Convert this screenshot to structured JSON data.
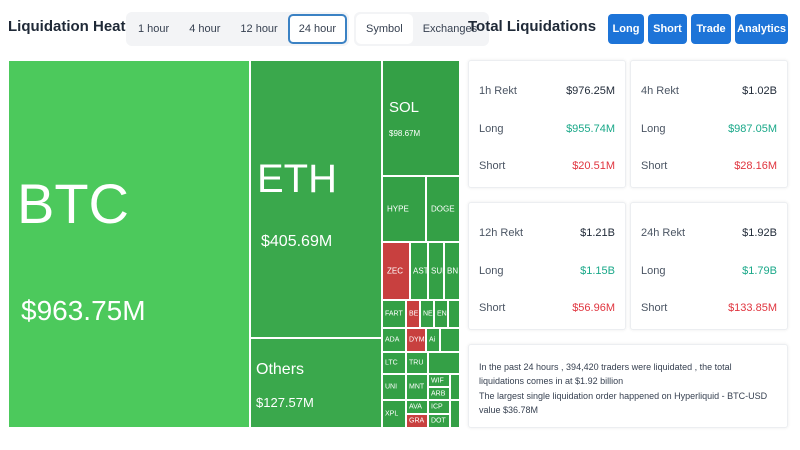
{
  "header": {
    "heatmap_title": "Liquidation Heatmap",
    "time_tabs": [
      "1 hour",
      "4 hour",
      "12 hour",
      "24 hour"
    ],
    "active_time_tab": "24 hour",
    "view_tabs": [
      "Symbol",
      "Exchanges"
    ],
    "active_view_tab": "Symbol",
    "total_title": "Total Liquidations",
    "actions": [
      "Long",
      "Short",
      "Trade",
      "Analytics"
    ]
  },
  "heatmap": {
    "btc": {
      "name": "BTC",
      "value": "$963.75M"
    },
    "eth": {
      "name": "ETH",
      "value": "$405.69M"
    },
    "others": {
      "name": "Others",
      "value": "$127.57M"
    },
    "sol": {
      "name": "SOL",
      "value": "$98.67M"
    },
    "small": {
      "hype": "HYPE",
      "doge": "DOGE",
      "zec": "ZEC",
      "ast": "AST",
      "sui": "SUI",
      "bnb": "BN",
      "fart": "FART",
      "bea": "BE",
      "ne": "NE",
      "en": "EN",
      "ada": "ADA",
      "dym": "DYM",
      "a1": "Ai",
      "ltc": "LTC",
      "trum": "TRU",
      "uni": "UNI",
      "mnt": "MNT",
      "wif": "WIF",
      "arb": "ARB",
      "ava": "AVA",
      "icp": "ICP",
      "xpl": "XPL",
      "gra": "GRA",
      "dot": "DOT"
    },
    "colors": {
      "up_light": "#4cc95c",
      "up": "#3aa84c",
      "down": "#c8403f"
    }
  },
  "cards": [
    {
      "title": "1h Rekt",
      "total": "$976.25M",
      "long_label": "Long",
      "long": "$955.74M",
      "short_label": "Short",
      "short": "$20.51M"
    },
    {
      "title": "4h Rekt",
      "total": "$1.02B",
      "long_label": "Long",
      "long": "$987.05M",
      "short_label": "Short",
      "short": "$28.16M"
    },
    {
      "title": "12h Rekt",
      "total": "$1.21B",
      "long_label": "Long",
      "long": "$1.15B",
      "short_label": "Short",
      "short": "$56.96M"
    },
    {
      "title": "24h Rekt",
      "total": "$1.92B",
      "long_label": "Long",
      "long": "$1.79B",
      "short_label": "Short",
      "short": "$133.85M"
    }
  ],
  "summary": {
    "line1": "In the past 24 hours , 394,420 traders were liquidated , the total liquidations comes in at $1.92 billion",
    "line2": "The largest single liquidation order happened on Hyperliquid - BTC-USD value $36.78M"
  },
  "colors": {
    "accent": "#1d74d8",
    "positive": "#1aa889",
    "negative": "#e0353f"
  }
}
